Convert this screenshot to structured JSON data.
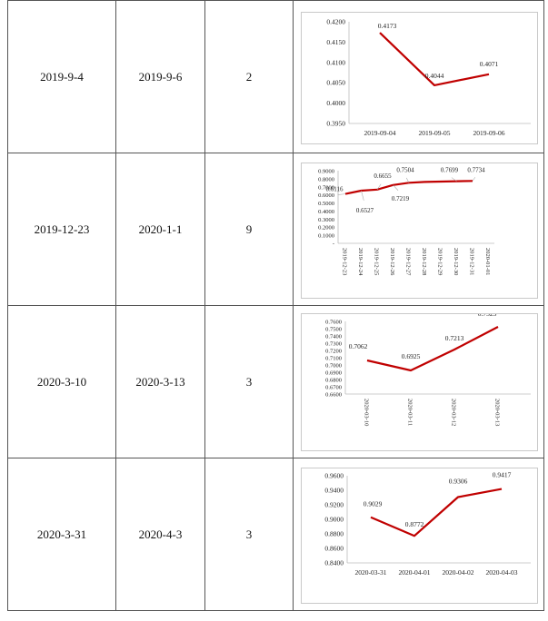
{
  "rows": [
    {
      "start": "2019-9-4",
      "end": "2019-9-6",
      "count": "2"
    },
    {
      "start": "2019-12-23",
      "end": "2020-1-1",
      "count": "9"
    },
    {
      "start": "2020-3-10",
      "end": "2020-3-13",
      "count": "3"
    },
    {
      "start": "2020-3-31",
      "end": "2020-4-3",
      "count": "3"
    }
  ],
  "line_color": "#c00000",
  "chart_data": [
    {
      "type": "line",
      "x": [
        "2019-09-04",
        "2019-09-05",
        "2019-09-06"
      ],
      "series": [
        {
          "values": [
            0.4173,
            0.4044,
            0.4071
          ]
        }
      ],
      "data_labels": [
        "0.4173",
        "0.4044",
        "0.4071"
      ],
      "y_ticks": [
        "0.4200",
        "0.4150",
        "0.4100",
        "0.4050",
        "0.4000",
        "0.3950"
      ],
      "ylim": [
        0.395,
        0.42
      ],
      "x_label_rotation": 0,
      "grid": false,
      "legend": "none"
    },
    {
      "type": "line",
      "x": [
        "2019-12-23",
        "2019-12-24",
        "2019-12-25",
        "2019-12-26",
        "2019-12-27",
        "2019-12-28",
        "2019-12-29",
        "2019-12-30",
        "2019-12-31",
        "2020-01-01"
      ],
      "series": [
        {
          "values": [
            0.6116,
            0.6527,
            0.6655,
            0.7219,
            0.7504,
            0.76,
            0.765,
            0.7699,
            0.7734,
            null
          ]
        }
      ],
      "data_labels": [
        "0.6116",
        "0.6527",
        "0.6655",
        "0.7219",
        "0.7504",
        "",
        "",
        "0.7699",
        "0.7734",
        ""
      ],
      "y_ticks": [
        "0.9000",
        "0.8000",
        "0.7000",
        "0.6000",
        "0.5000",
        "0.4000",
        "0.3000",
        "0.2000",
        "0.1000",
        "-"
      ],
      "ylim": [
        0,
        0.9
      ],
      "x_label_rotation": 90,
      "grid": false,
      "legend": "none"
    },
    {
      "type": "line",
      "x": [
        "2020-03-10",
        "2020-03-11",
        "2020-03-12",
        "2020-03-13"
      ],
      "series": [
        {
          "values": [
            0.7062,
            0.6925,
            0.7213,
            0.7525
          ]
        }
      ],
      "data_labels": [
        "0.7062",
        "0.6925",
        "0.7213",
        "0.7525"
      ],
      "y_ticks": [
        "0.7600",
        "0.7500",
        "0.7400",
        "0.7300",
        "0.7200",
        "0.7100",
        "0.7000",
        "0.6900",
        "0.6800",
        "0.6700",
        "0.6600"
      ],
      "ylim": [
        0.66,
        0.76
      ],
      "x_label_rotation": 90,
      "grid": false,
      "legend": "none"
    },
    {
      "type": "line",
      "x": [
        "2020-03-31",
        "2020-04-01",
        "2020-04-02",
        "2020-04-03"
      ],
      "series": [
        {
          "values": [
            0.9029,
            0.8772,
            0.9306,
            0.9417
          ]
        }
      ],
      "data_labels": [
        "0.9029",
        "0.8772",
        "0.9306",
        "0.9417"
      ],
      "y_ticks": [
        "0.9600",
        "0.9400",
        "0.9200",
        "0.9000",
        "0.8800",
        "0.8600",
        "0.8400"
      ],
      "ylim": [
        0.84,
        0.96
      ],
      "x_label_rotation": 0,
      "grid": false,
      "legend": "none"
    }
  ]
}
